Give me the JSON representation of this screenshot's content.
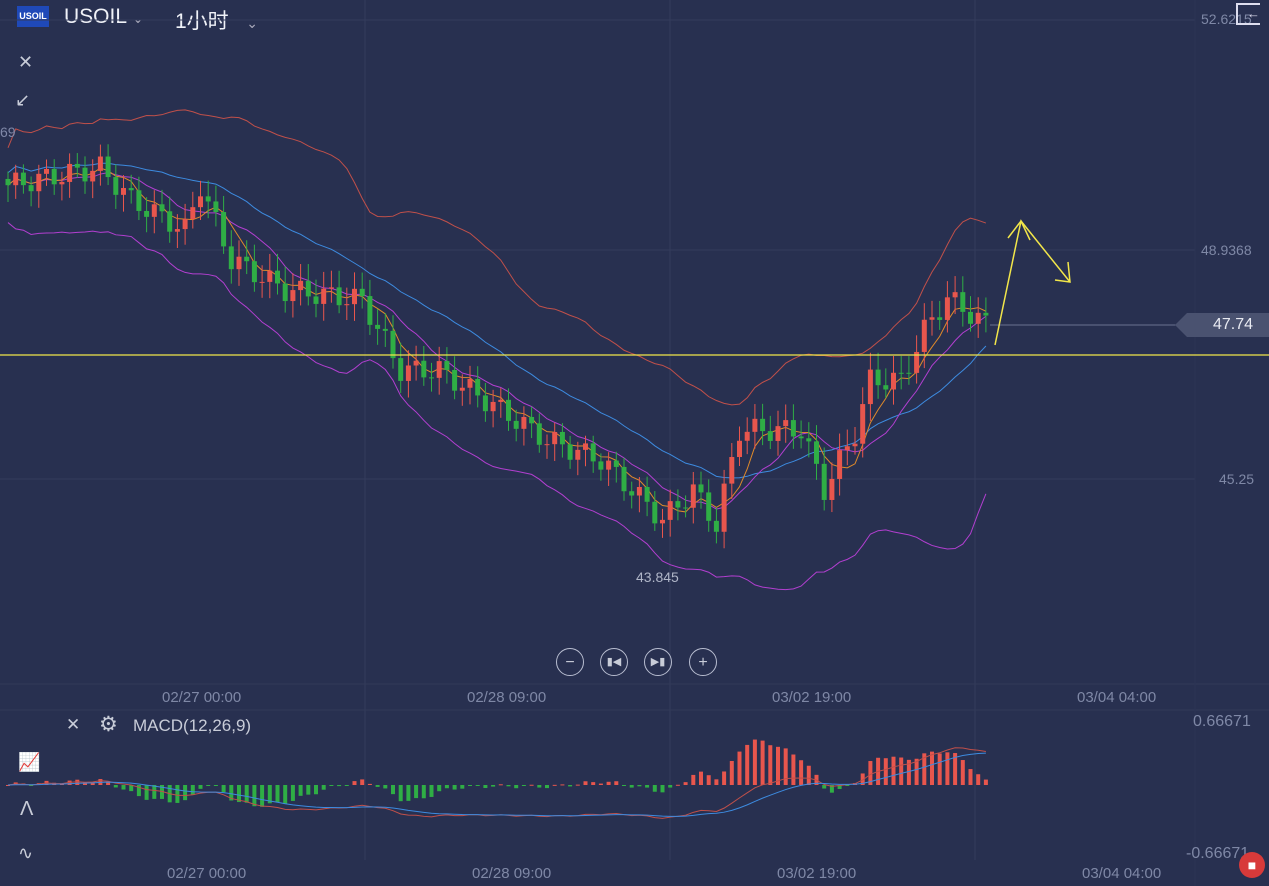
{
  "header": {
    "logo_text": "USOIL",
    "symbol": "USOIL",
    "interval": "1小时"
  },
  "price_axis": {
    "labels": [
      "52.6215",
      "48.9368",
      "45.25"
    ],
    "current_price": "47.74",
    "low_label": "43.845",
    "left_edge_label": "69"
  },
  "time_axis": {
    "labels": [
      "02/27 00:00",
      "02/28 09:00",
      "03/02 19:00",
      "03/04 04:00"
    ]
  },
  "macd_panel": {
    "title": "MACD(12,26,9)",
    "axis_max": "0.66671",
    "axis_min": "-0.66671"
  },
  "colors": {
    "up": "#e8564d",
    "down": "#2fae45",
    "upper_band": "#c0504a",
    "mid": "#3d8be0",
    "ma10": "#b23fd0",
    "ma5": "#e08a2a",
    "annot": "#f2e64a"
  },
  "chart_data": {
    "type": "candlestick",
    "symbol": "USOIL",
    "interval": "1h",
    "ylim": [
      43.6,
      52.6215
    ],
    "close_anchors": [
      [
        0,
        49.97
      ],
      [
        12,
        50.25
      ],
      [
        16,
        49.73
      ],
      [
        23,
        49.25
      ],
      [
        25,
        49.97
      ],
      [
        29,
        48.77
      ],
      [
        36,
        48.29
      ],
      [
        46,
        48.13
      ],
      [
        51,
        47.0
      ],
      [
        56,
        47.0
      ],
      [
        62,
        46.52
      ],
      [
        70,
        45.88
      ],
      [
        77,
        45.56
      ],
      [
        85,
        44.6
      ],
      [
        89,
        45.08
      ],
      [
        92,
        44.52
      ],
      [
        95,
        46.04
      ],
      [
        103,
        46.04
      ],
      [
        106,
        45.08
      ],
      [
        110,
        46.0
      ],
      [
        112,
        46.84
      ],
      [
        116,
        46.84
      ],
      [
        119,
        47.64
      ],
      [
        122,
        48.16
      ],
      [
        127,
        47.74
      ]
    ],
    "horizontal_line": 47.24,
    "indicators": [
      "Bollinger Bands",
      "MA",
      "MACD(12,26,9)"
    ]
  }
}
